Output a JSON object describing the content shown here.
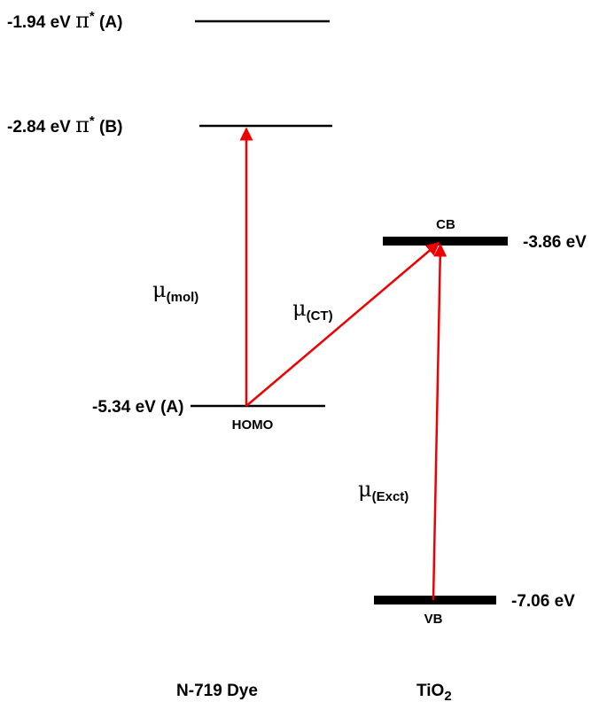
{
  "levels": [
    {
      "energy": "-1.94 eV",
      "symbol": "π",
      "superscript": "*",
      "state": "(A)"
    },
    {
      "energy": "-2.84 eV",
      "symbol": "π",
      "superscript": "*",
      "state": "(B)"
    },
    {
      "name": "CB",
      "energy": "-3.86 eV"
    },
    {
      "energy": "-5.34 eV",
      "state": "(A)",
      "name": "HOMO"
    },
    {
      "name": "VB",
      "energy": "-7.06 eV"
    }
  ],
  "transitions": [
    {
      "symbol": "μ",
      "subscript": "(mol)"
    },
    {
      "symbol": "μ",
      "subscript": "(CT)"
    },
    {
      "symbol": "μ",
      "subscript": "(Exct)"
    }
  ],
  "materials": [
    {
      "name": "N-719 Dye"
    },
    {
      "name": "TiO",
      "subscript": "2"
    }
  ]
}
